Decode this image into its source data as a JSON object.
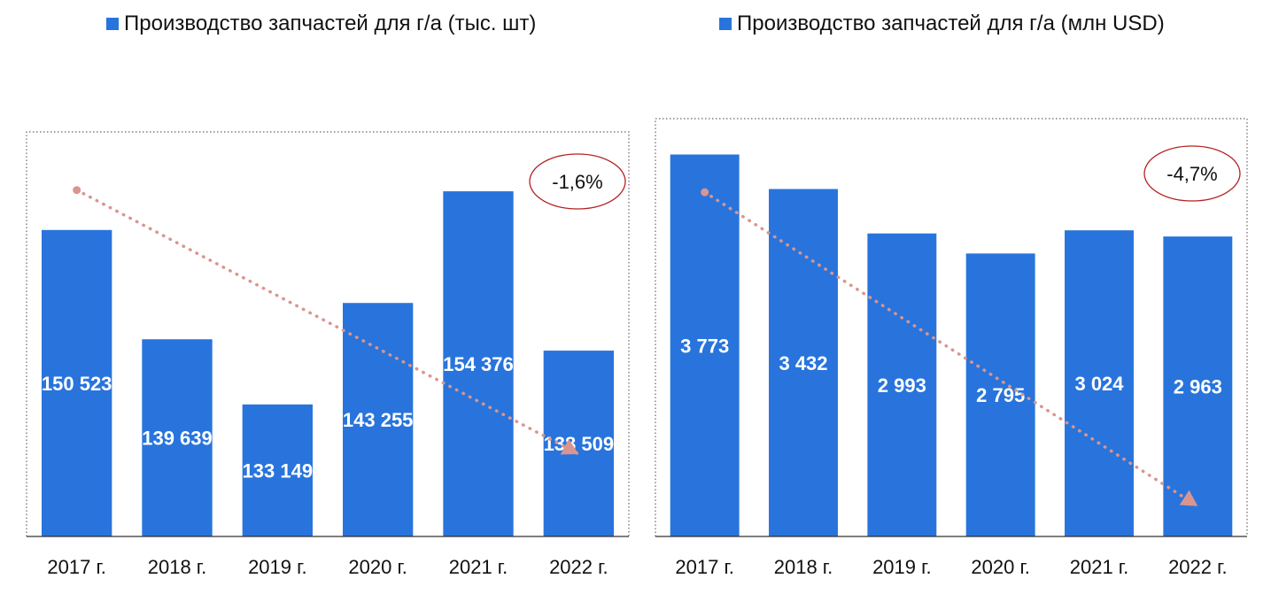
{
  "colors": {
    "bar": "#2874DC",
    "trend": "#D9958F",
    "badge_border": "#B22222",
    "frame": "#666666"
  },
  "chart_data": [
    {
      "type": "bar",
      "legend": "Производство запчастей для г/а (тыс. шт)",
      "categories": [
        "2017 г.",
        "2018 г.",
        "2019 г.",
        "2020 г.",
        "2021 г.",
        "2022 г."
      ],
      "values": [
        150523,
        139639,
        133149,
        143255,
        154376,
        138509
      ],
      "value_labels": [
        "150 523",
        "139 639",
        "133 149",
        "143 255",
        "154 376",
        "138 509"
      ],
      "ylim": [
        120000,
        158000
      ],
      "trendline": {
        "style": "dotted",
        "from": 0,
        "to": 5,
        "start_value": 154500,
        "end_value": 128200
      },
      "cagr": "-1,6%",
      "grid": false
    },
    {
      "type": "bar",
      "legend": "Производство запчастей для г/а (млн USD)",
      "categories": [
        "2017 г.",
        "2018 г.",
        "2019 г.",
        "2020 г.",
        "2021 г.",
        "2022 г."
      ],
      "values": [
        3773,
        3432,
        2993,
        2795,
        3024,
        2963
      ],
      "value_labels": [
        "3 773",
        "3 432",
        "2 993",
        "2 795",
        "3 024",
        "2 963"
      ],
      "ylim": [
        0,
        3900
      ],
      "trendline": {
        "style": "dotted",
        "from": 0,
        "to": 5,
        "start_value": 3400,
        "end_value": 300
      },
      "cagr": "-4,7%",
      "grid": false
    }
  ]
}
